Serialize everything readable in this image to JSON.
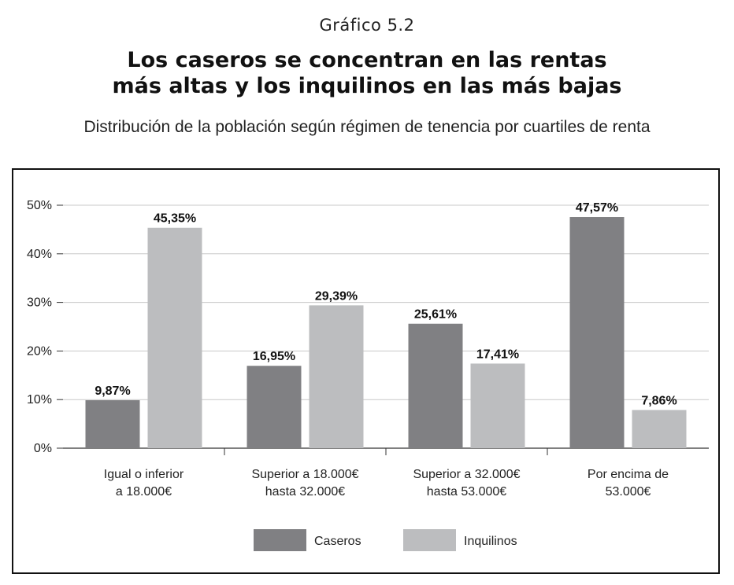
{
  "figure_label": "Gráfico 5.2",
  "title_lines": [
    "Los caseros se concentran en las rentas",
    "más altas y los inquilinos en las más bajas"
  ],
  "subtitle": "Distribución de la población según régimen de tenencia por cuartiles de renta",
  "chart_data": {
    "type": "bar",
    "title": "Los caseros se concentran en las rentas más altas y los inquilinos en las más bajas",
    "subtitle": "Distribución de la población según régimen de tenencia por cuartiles de renta",
    "categories": [
      [
        "Igual o inferior",
        "a 18.000€"
      ],
      [
        "Superior a 18.000€",
        "hasta 32.000€"
      ],
      [
        "Superior a 32.000€",
        "hasta 53.000€"
      ],
      [
        "Por encima de",
        "53.000€"
      ]
    ],
    "series": [
      {
        "name": "Caseros",
        "color": "#808083",
        "values": [
          9.87,
          16.95,
          25.61,
          47.57
        ],
        "labels": [
          "9,87%",
          "16,95%",
          "25,61%",
          "47,57%"
        ]
      },
      {
        "name": "Inquilinos",
        "color": "#bcbdbf",
        "values": [
          45.35,
          29.39,
          17.41,
          7.86
        ],
        "labels": [
          "45,35%",
          "29,39%",
          "17,41%",
          "7,86%"
        ]
      }
    ],
    "ylim": [
      0,
      50
    ],
    "yticks": [
      0,
      10,
      20,
      30,
      40,
      50
    ],
    "ytick_labels": [
      "0%",
      "10%",
      "20%",
      "30%",
      "40%",
      "50%"
    ],
    "grid": true,
    "legend_position": "bottom-center",
    "gridline_color": "#c8c8c8",
    "axis_color": "#333333"
  }
}
